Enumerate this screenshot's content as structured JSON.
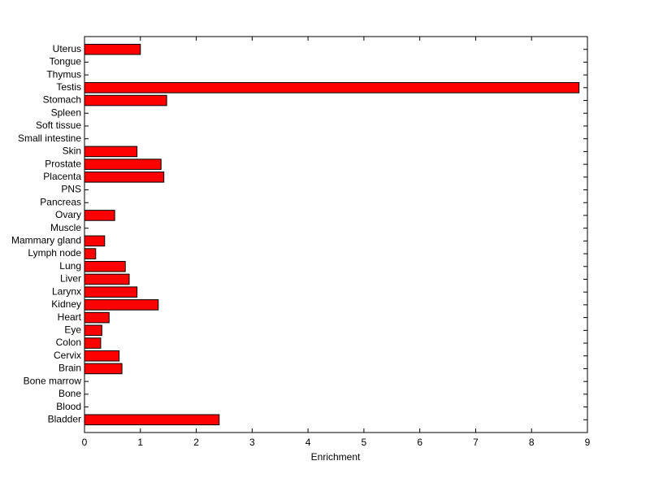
{
  "chart_data": {
    "type": "barh",
    "xlabel": "Enrichment",
    "categories": [
      "Bladder",
      "Blood",
      "Bone",
      "Bone marrow",
      "Brain",
      "Cervix",
      "Colon",
      "Eye",
      "Heart",
      "Kidney",
      "Larynx",
      "Liver",
      "Lung",
      "Lymph node",
      "Mammary gland",
      "Muscle",
      "Ovary",
      "Pancreas",
      "PNS",
      "Placenta",
      "Prostate",
      "Skin",
      "Small intestine",
      "Soft tissue",
      "Spleen",
      "Stomach",
      "Testis",
      "Thymus",
      "Tongue",
      "Uterus"
    ],
    "values": [
      2.41,
      0,
      0,
      0,
      0.67,
      0.62,
      0.29,
      0.31,
      0.44,
      1.32,
      0.94,
      0.8,
      0.73,
      0.2,
      0.36,
      0,
      0.54,
      0,
      0,
      1.42,
      1.37,
      0.94,
      0,
      0,
      0,
      1.47,
      8.85,
      0,
      0,
      1.0
    ],
    "color": "#ff0000",
    "xlim": [
      0,
      9
    ],
    "xticks": [
      0,
      1,
      2,
      3,
      4,
      5,
      6,
      7,
      8,
      9
    ]
  }
}
